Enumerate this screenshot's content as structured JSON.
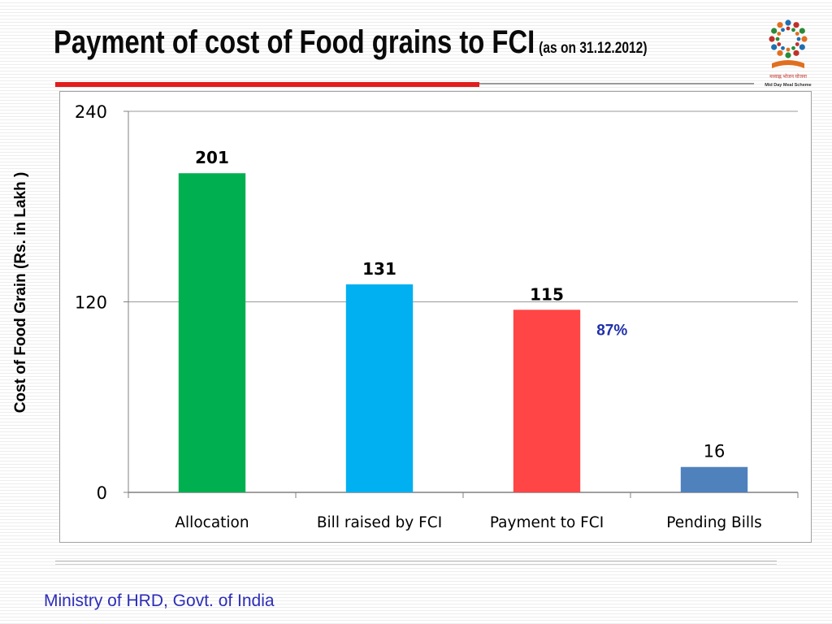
{
  "title": "Payment of cost of Food grains to FCI",
  "subtitle": "(as on 31.12.2012)",
  "logo": {
    "icon": "mid-day-meal-logo",
    "text": "Mid Day Meal Scheme"
  },
  "footer": "Ministry of HRD, Govt. of India",
  "colors": {
    "accent_rule": "#e31c1c",
    "footer_text": "#2d2db8",
    "annotation": "#1f2fa8"
  },
  "chart_data": {
    "type": "bar",
    "title": "",
    "xlabel": "",
    "ylabel": "Cost of Food Grain (Rs. in Lakh )",
    "ylim": [
      0,
      240
    ],
    "yticks": [
      0,
      120,
      240
    ],
    "grid": true,
    "categories": [
      "Allocation",
      "Bill raised by FCI",
      "Payment to FCI",
      "Pending Bills"
    ],
    "values": [
      201,
      131,
      115,
      16
    ],
    "value_labels": [
      "201",
      "131",
      "115",
      "16"
    ],
    "bar_colors": [
      "#00b050",
      "#00b0f0",
      "#ff4545",
      "#4f81bd"
    ],
    "annotations": [
      {
        "category": "Payment to FCI",
        "text": "87%"
      }
    ]
  }
}
